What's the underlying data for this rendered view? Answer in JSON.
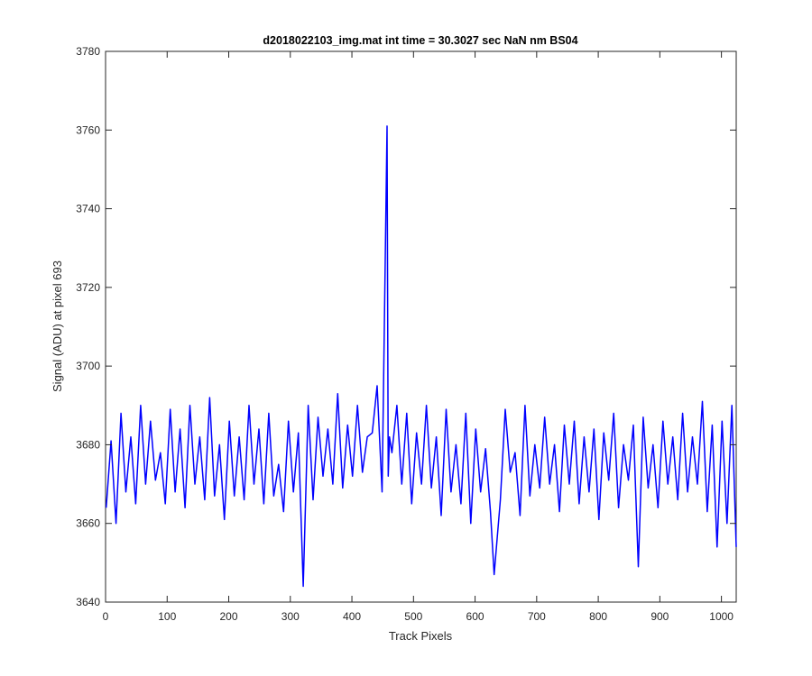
{
  "chart_data": {
    "type": "line",
    "title": "d2018022103_img.mat int time = 30.3027 sec  NaN nm BS04",
    "xlabel": "Track Pixels",
    "ylabel": "Signal (ADU) at pixel 693",
    "xlim": [
      0,
      1024
    ],
    "ylim": [
      3640,
      3780
    ],
    "xticks": [
      0,
      100,
      200,
      300,
      400,
      500,
      600,
      700,
      800,
      900,
      1000
    ],
    "yticks": [
      3640,
      3660,
      3680,
      3700,
      3720,
      3740,
      3760,
      3780
    ],
    "grid": false,
    "series": [
      {
        "color": "#0000ff",
        "x": [
          1,
          9,
          17,
          25,
          33,
          41,
          49,
          57,
          65,
          73,
          81,
          89,
          97,
          105,
          113,
          121,
          129,
          137,
          145,
          153,
          161,
          169,
          177,
          185,
          193,
          201,
          209,
          217,
          225,
          233,
          241,
          249,
          257,
          265,
          273,
          281,
          289,
          297,
          305,
          313,
          321,
          329,
          337,
          345,
          353,
          361,
          369,
          377,
          385,
          393,
          401,
          409,
          417,
          425,
          433,
          441,
          449,
          457,
          459,
          461,
          465,
          473,
          481,
          489,
          497,
          505,
          513,
          521,
          529,
          537,
          545,
          553,
          561,
          569,
          577,
          585,
          593,
          601,
          609,
          617,
          625,
          631,
          641,
          649,
          657,
          665,
          673,
          681,
          689,
          697,
          705,
          713,
          721,
          729,
          737,
          745,
          753,
          761,
          769,
          777,
          785,
          793,
          801,
          809,
          817,
          825,
          833,
          841,
          849,
          857,
          865,
          873,
          881,
          889,
          897,
          905,
          913,
          921,
          929,
          937,
          945,
          953,
          961,
          969,
          977,
          985,
          993,
          1001,
          1009,
          1017,
          1024
        ],
        "y": [
          3664,
          3681,
          3660,
          3688,
          3668,
          3682,
          3665,
          3690,
          3670,
          3686,
          3671,
          3678,
          3665,
          3689,
          3668,
          3684,
          3664,
          3690,
          3670,
          3682,
          3666,
          3692,
          3667,
          3680,
          3661,
          3686,
          3667,
          3682,
          3666,
          3690,
          3670,
          3684,
          3665,
          3688,
          3667,
          3675,
          3663,
          3686,
          3668,
          3683,
          3644,
          3690,
          3666,
          3687,
          3672,
          3684,
          3670,
          3693,
          3669,
          3685,
          3672,
          3690,
          3673,
          3682,
          3683,
          3695,
          3668,
          3761,
          3672,
          3682,
          3678,
          3690,
          3670,
          3688,
          3665,
          3683,
          3670,
          3690,
          3669,
          3682,
          3662,
          3689,
          3668,
          3680,
          3665,
          3688,
          3660,
          3684,
          3668,
          3679,
          3663,
          3647,
          3666,
          3689,
          3673,
          3678,
          3662,
          3690,
          3667,
          3680,
          3669,
          3687,
          3670,
          3680,
          3663,
          3685,
          3670,
          3686,
          3665,
          3682,
          3668,
          3684,
          3661,
          3683,
          3671,
          3688,
          3664,
          3680,
          3671,
          3685,
          3649,
          3687,
          3669,
          3680,
          3664,
          3686,
          3670,
          3682,
          3666,
          3688,
          3668,
          3682,
          3670,
          3691,
          3663,
          3685,
          3654,
          3686,
          3660,
          3690,
          3654
        ]
      }
    ]
  }
}
